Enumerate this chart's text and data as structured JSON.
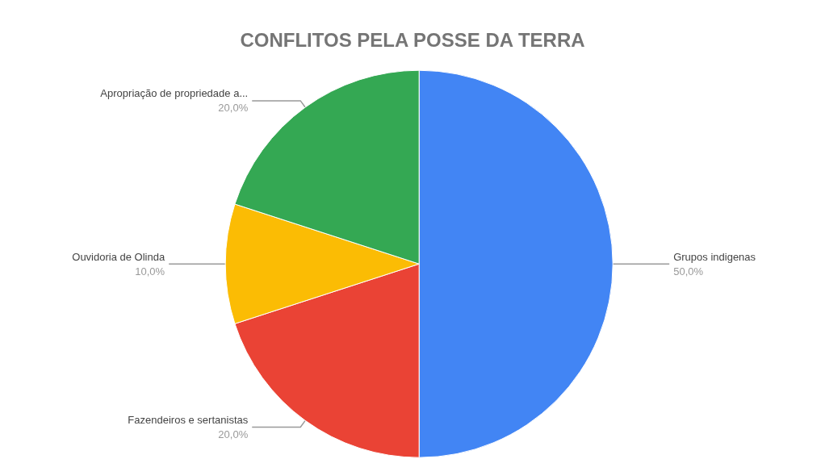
{
  "chart_data": {
    "type": "pie",
    "title": "CONFLITOS PELA POSSE DA TERRA",
    "categories": [
      "Grupos indigenas",
      "Fazendeiros e sertanistas",
      "Ouvidoria de Olinda",
      "Apropriação de propriedade a..."
    ],
    "values": [
      50,
      20,
      10,
      20
    ],
    "colors": [
      "#4285f4",
      "#ea4335",
      "#fbbc04",
      "#34a853"
    ],
    "value_labels": [
      "50,0%",
      "20,0%",
      "10,0%",
      "20,0%"
    ],
    "legend": false
  }
}
